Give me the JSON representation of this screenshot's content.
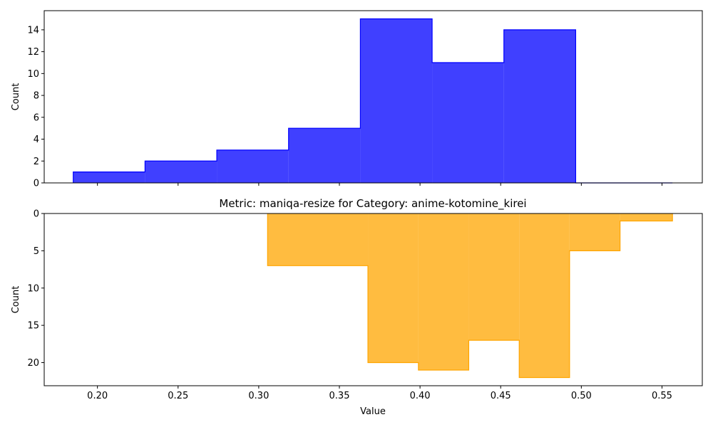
{
  "chart_data": [
    {
      "type": "histogram",
      "title": "",
      "xlabel": "",
      "ylabel": "Count",
      "color": "#0000ff",
      "fill_opacity": 0.75,
      "xlim": [
        0.167,
        0.575
      ],
      "ylim": [
        0,
        15.75
      ],
      "y_inverted": false,
      "x_ticks": [
        0.2,
        0.25,
        0.3,
        0.35,
        0.4,
        0.45,
        0.5,
        0.55
      ],
      "x_tick_labels_shown": false,
      "y_ticks": [
        0,
        2,
        4,
        6,
        8,
        10,
        12,
        14
      ],
      "y_tick_labels": [
        "0",
        "2",
        "4",
        "6",
        "8",
        "10",
        "12",
        "14"
      ],
      "bin_edges": [
        0.185,
        0.2295,
        0.274,
        0.3185,
        0.363,
        0.4075,
        0.452,
        0.4965,
        0.541,
        0.5565
      ],
      "counts": [
        1,
        2,
        3,
        5,
        15,
        11,
        14,
        0,
        0
      ]
    },
    {
      "type": "histogram",
      "title": "Metric: maniqa-resize for Category: anime-kotomine_kirei",
      "xlabel": "Value",
      "ylabel": "Count",
      "color": "#ffa500",
      "fill_opacity": 0.75,
      "xlim": [
        0.167,
        0.575
      ],
      "ylim": [
        0,
        23.1
      ],
      "y_inverted": true,
      "x_ticks": [
        0.2,
        0.25,
        0.3,
        0.35,
        0.4,
        0.45,
        0.5,
        0.55
      ],
      "x_tick_labels": [
        "0.20",
        "0.25",
        "0.30",
        "0.35",
        "0.40",
        "0.45",
        "0.50",
        "0.55"
      ],
      "y_ticks": [
        0,
        5,
        10,
        15,
        20
      ],
      "y_tick_labels": [
        "0",
        "5",
        "10",
        "15",
        "20"
      ],
      "bin_edges": [
        0.3055,
        0.3677,
        0.399,
        0.4302,
        0.4615,
        0.4927,
        0.524,
        0.5565
      ],
      "counts": [
        7,
        20,
        21,
        17,
        22,
        5,
        1
      ]
    }
  ]
}
